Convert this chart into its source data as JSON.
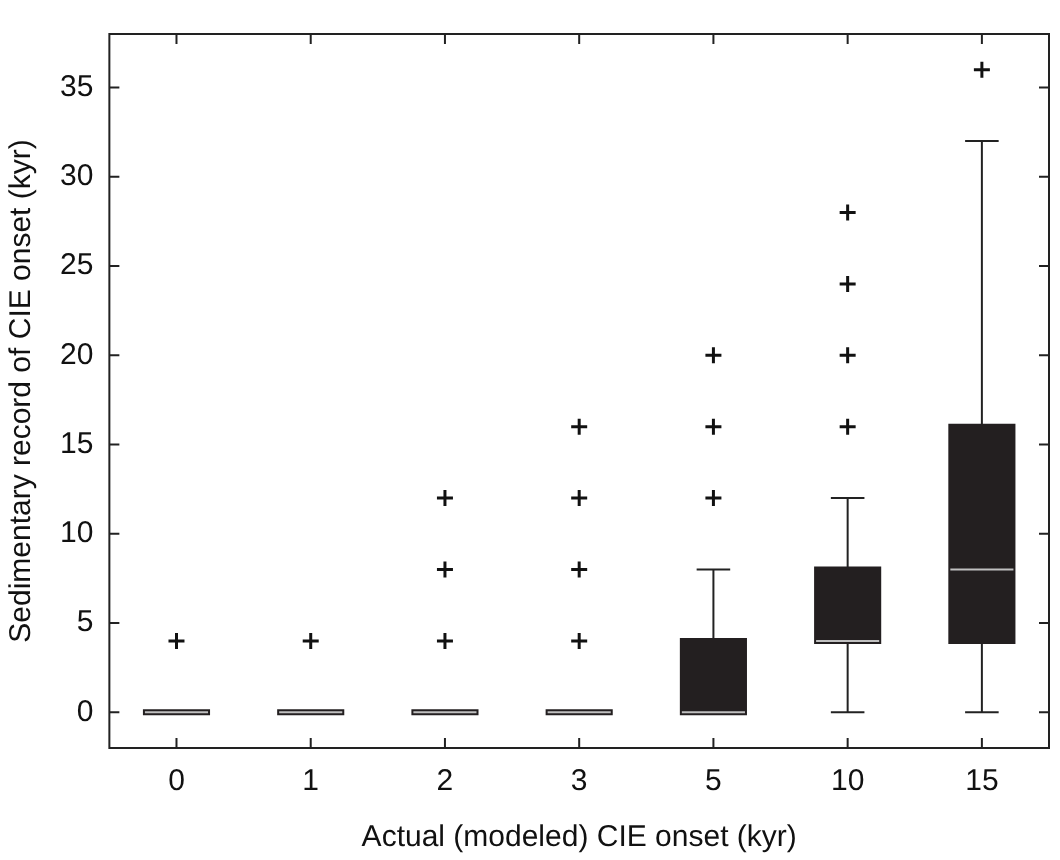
{
  "chart_data": {
    "type": "box",
    "xlabel": "Actual (modeled) CIE onset (kyr)",
    "ylabel": "Sedimentary record of CIE onset (kyr)",
    "categories": [
      "0",
      "1",
      "2",
      "3",
      "5",
      "10",
      "15"
    ],
    "color": "#231f20",
    "boxes": [
      {
        "low": 0,
        "q1": 0,
        "median": 0,
        "q3": 0,
        "high": 0,
        "outliers": [
          4
        ]
      },
      {
        "low": 0,
        "q1": 0,
        "median": 0,
        "q3": 0,
        "high": 0,
        "outliers": [
          4
        ]
      },
      {
        "low": 0,
        "q1": 0,
        "median": 0,
        "q3": 0,
        "high": 0,
        "outliers": [
          4,
          8,
          12
        ]
      },
      {
        "low": 0,
        "q1": 0,
        "median": 0,
        "q3": 0,
        "high": 0,
        "outliers": [
          4,
          8,
          12,
          16
        ]
      },
      {
        "low": 0,
        "q1": 0,
        "median": 0,
        "q3": 4,
        "high": 8,
        "outliers": [
          12,
          16,
          20
        ]
      },
      {
        "low": 0,
        "q1": 4,
        "median": 4,
        "q3": 8,
        "high": 12,
        "outliers": [
          16,
          20,
          24,
          28
        ]
      },
      {
        "low": 0,
        "q1": 4,
        "median": 8,
        "q3": 16,
        "high": 32,
        "outliers": [
          36
        ]
      }
    ],
    "ylim": [
      -2,
      38
    ],
    "yticks": [
      0,
      5,
      10,
      15,
      20,
      25,
      30,
      35
    ],
    "grid": false,
    "marker": "cross",
    "legend": false
  }
}
